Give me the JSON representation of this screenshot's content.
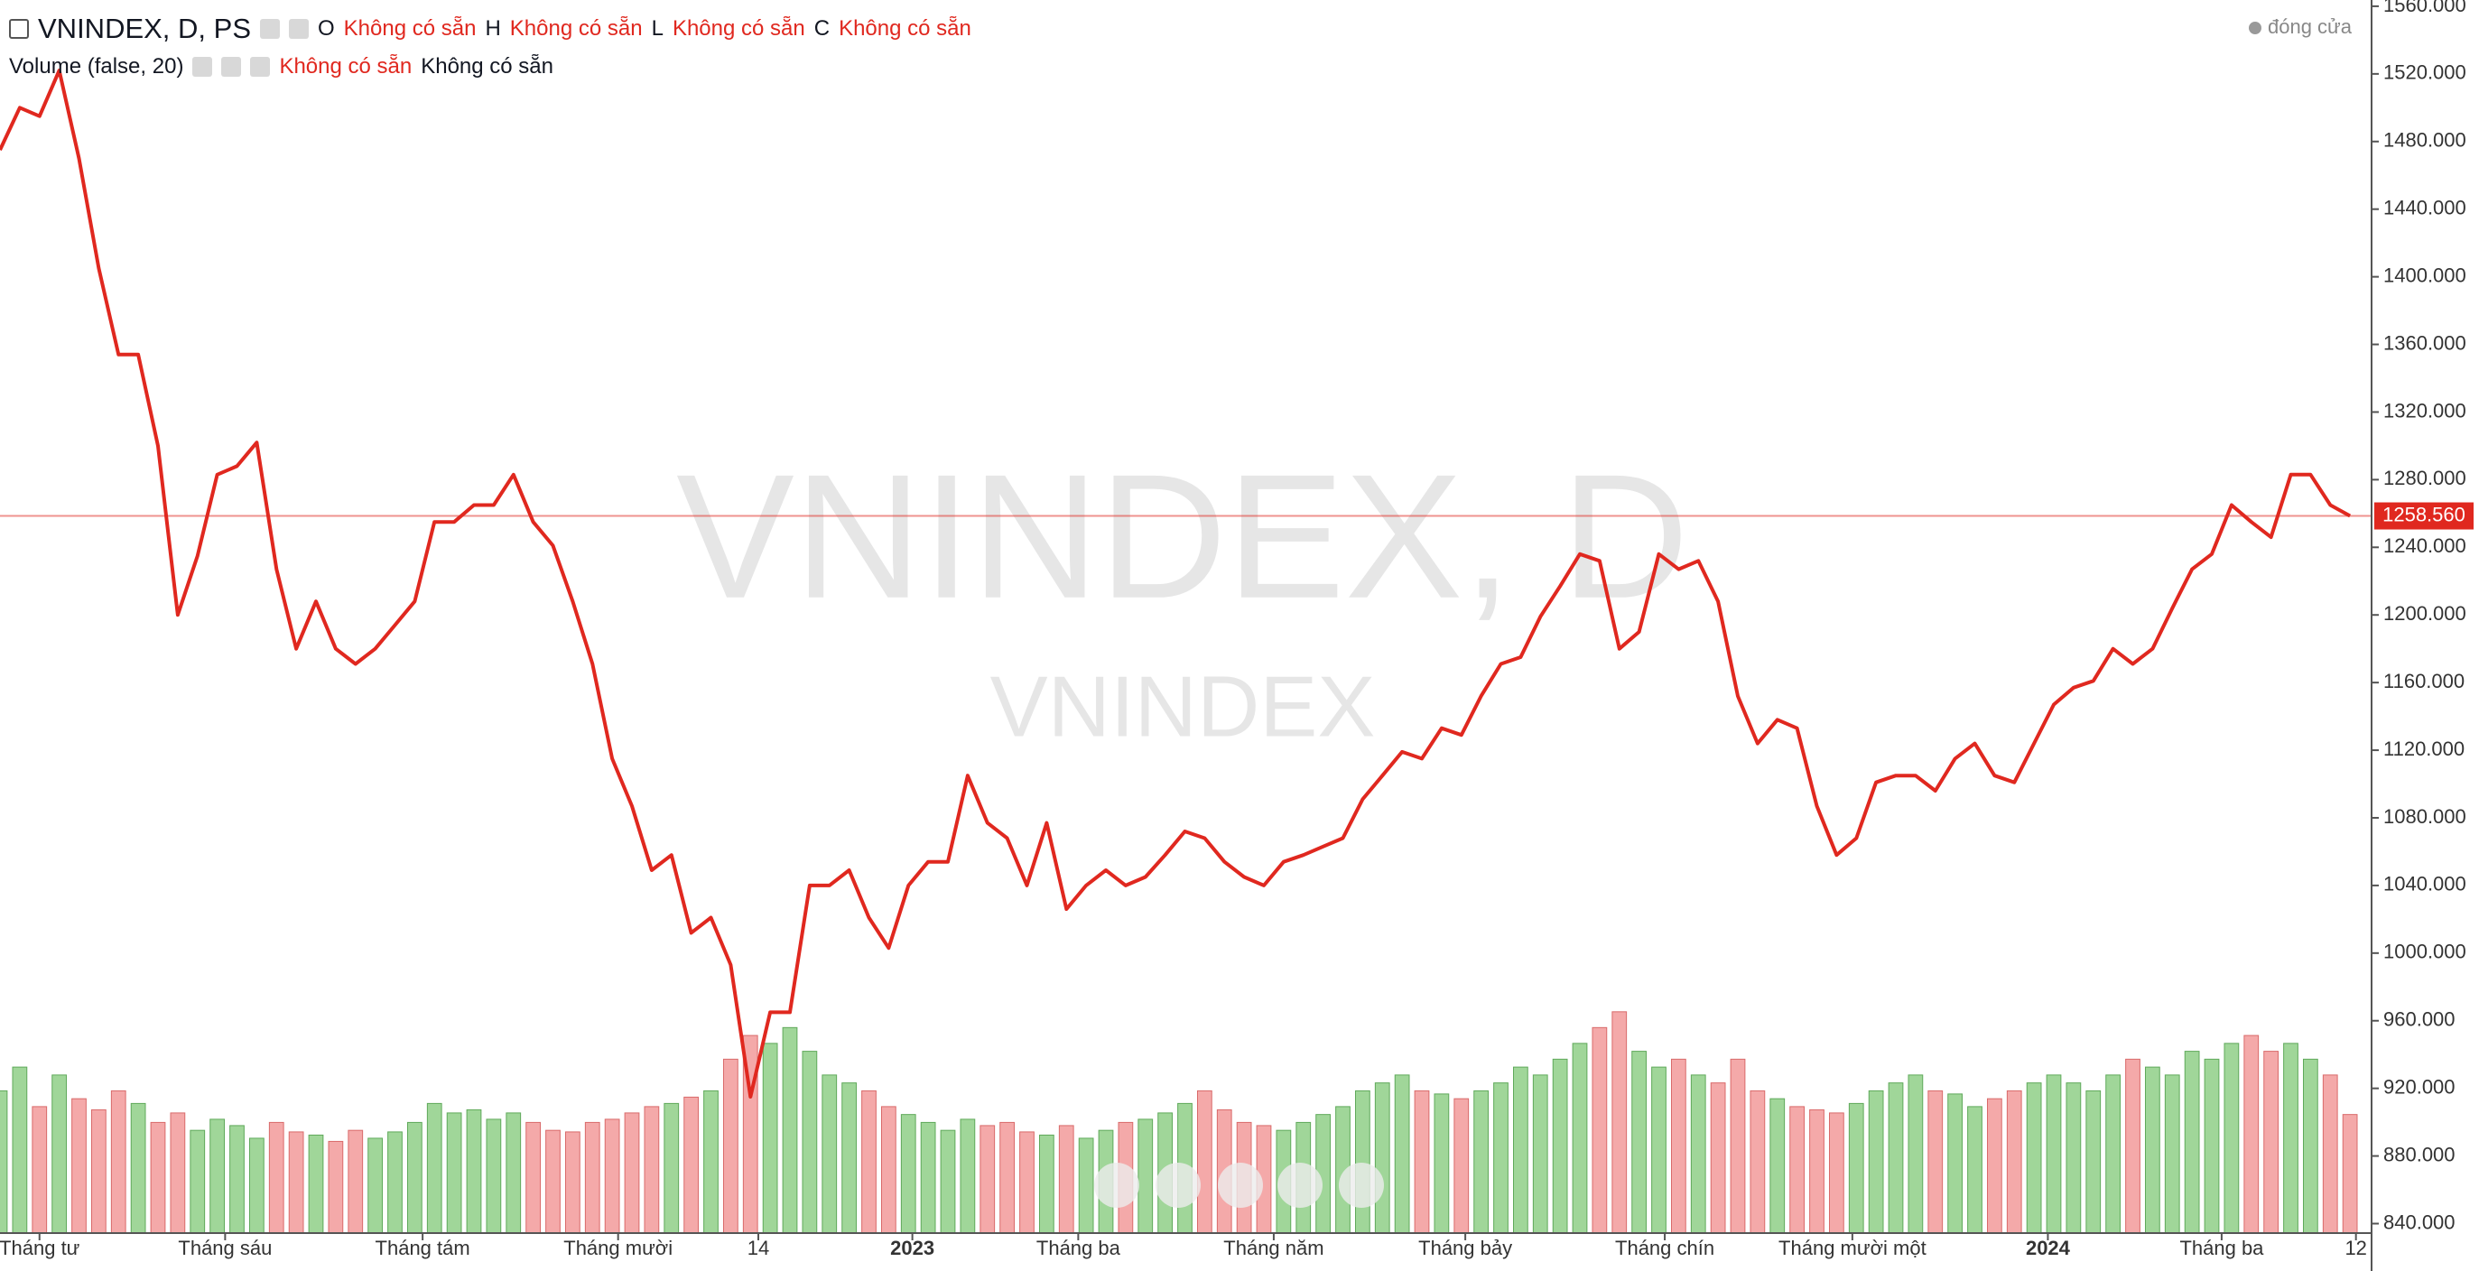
{
  "chart_data": {
    "type": "line",
    "title": "VNINDEX, D, PS",
    "ohlc": [
      {
        "key": "O",
        "value": "Không có sẵn"
      },
      {
        "key": "H",
        "value": "Không có sẵn"
      },
      {
        "key": "L",
        "value": "Không có sẵn"
      },
      {
        "key": "C",
        "value": "Không có sẵn"
      }
    ],
    "volume_legend": {
      "title": "Volume (false, 20)",
      "values": [
        "Không có sẵn",
        "Không có sẵn"
      ]
    },
    "watermark": "VNINDEX, D",
    "close_label": "đóng cửa",
    "series": [
      {
        "name": "VNINDEX",
        "color": "#e0281f",
        "values": [
          1475,
          1500,
          1495,
          1522,
          1470,
          1405,
          1354,
          1354,
          1300,
          1200,
          1235,
          1283,
          1288,
          1302,
          1227,
          1180,
          1208,
          1180,
          1171,
          1180,
          1194,
          1208,
          1255,
          1255,
          1265,
          1265,
          1283,
          1255,
          1241,
          1208,
          1171,
          1115,
          1087,
          1049,
          1058,
          1012,
          1021,
          993,
          915,
          965,
          965,
          1040,
          1040,
          1049,
          1021,
          1003,
          1040,
          1054,
          1054,
          1105,
          1077,
          1068,
          1040,
          1077,
          1026,
          1040,
          1049,
          1040,
          1045,
          1058,
          1072,
          1068,
          1054,
          1045,
          1040,
          1054,
          1058,
          1063,
          1068,
          1091,
          1105,
          1119,
          1115,
          1133,
          1129,
          1152,
          1171,
          1175,
          1199,
          1217,
          1236,
          1232,
          1180,
          1190,
          1236,
          1227,
          1232,
          1208,
          1152,
          1124,
          1138,
          1133,
          1087,
          1058,
          1068,
          1101,
          1105,
          1105,
          1096,
          1115,
          1124,
          1105,
          1101,
          1124,
          1147,
          1157,
          1161,
          1180,
          1171,
          1180,
          1204,
          1227,
          1236,
          1265,
          1255,
          1246,
          1283,
          1283,
          1265,
          1258.56
        ]
      }
    ],
    "volume": {
      "up_color": "#8fcf87",
      "down_color": "#f29a9a",
      "ylim": [
        0,
        7800
      ],
      "values": [
        900,
        1050,
        800,
        1000,
        850,
        780,
        900,
        820,
        700,
        760,
        650,
        720,
        680,
        600,
        700,
        640,
        620,
        580,
        650,
        600,
        640,
        700,
        820,
        760,
        780,
        720,
        760,
        700,
        650,
        640,
        700,
        720,
        760,
        800,
        820,
        860,
        900,
        1100,
        1250,
        1200,
        1300,
        1150,
        1000,
        950,
        900,
        800,
        750,
        700,
        650,
        720,
        680,
        700,
        640,
        620,
        680,
        600,
        650,
        700,
        720,
        760,
        820,
        900,
        780,
        700,
        680,
        650,
        700,
        750,
        800,
        900,
        950,
        1000,
        900,
        880,
        850,
        900,
        950,
        1050,
        1000,
        1100,
        1200,
        1300,
        1400,
        1150,
        1050,
        1100,
        1000,
        950,
        1100,
        900,
        850,
        800,
        780,
        760,
        820,
        900,
        950,
        1000,
        900,
        880,
        800,
        850,
        900,
        950,
        1000,
        950,
        900,
        1000,
        1100,
        1050,
        1000,
        1150,
        1100,
        1200,
        1250,
        1150,
        1200,
        1100,
        1000,
        750
      ]
    },
    "last_price": {
      "value": 1258.56,
      "label": "1258.560"
    },
    "xlim": [
      0,
      120
    ],
    "xticks": [
      {
        "value": 2,
        "label": "Tháng tư"
      },
      {
        "value": 11.4,
        "label": "Tháng sáu"
      },
      {
        "value": 21.4,
        "label": "Tháng tám"
      },
      {
        "value": 31.3,
        "label": "Tháng mười"
      },
      {
        "value": 38.4,
        "label": "14"
      },
      {
        "value": 46.2,
        "label": "2023"
      },
      {
        "value": 54.6,
        "label": "Tháng ba"
      },
      {
        "value": 64.5,
        "label": "Tháng năm"
      },
      {
        "value": 74.2,
        "label": "Tháng bảy"
      },
      {
        "value": 84.3,
        "label": "Tháng chín"
      },
      {
        "value": 93.8,
        "label": "Tháng mười một"
      },
      {
        "value": 103.7,
        "label": "2024"
      },
      {
        "value": 112.5,
        "label": "Tháng ba"
      },
      {
        "value": 119.3,
        "label": "12"
      }
    ],
    "ylim": [
      834.4,
      1563.7
    ],
    "yticks": [
      {
        "value": 840,
        "label": "840.000"
      },
      {
        "value": 880,
        "label": "880.000"
      },
      {
        "value": 920,
        "label": "920.000"
      },
      {
        "value": 960,
        "label": "960.000"
      },
      {
        "value": 1000,
        "label": "1000.000"
      },
      {
        "value": 1040,
        "label": "1040.000"
      },
      {
        "value": 1080,
        "label": "1080.000"
      },
      {
        "value": 1120,
        "label": "1120.000"
      },
      {
        "value": 1160,
        "label": "1160.000"
      },
      {
        "value": 1200,
        "label": "1200.000"
      },
      {
        "value": 1240,
        "label": "1240.000"
      },
      {
        "value": 1280,
        "label": "1280.000"
      },
      {
        "value": 1320,
        "label": "1320.000"
      },
      {
        "value": 1360,
        "label": "1360.000"
      },
      {
        "value": 1400,
        "label": "1400.000"
      },
      {
        "value": 1440,
        "label": "1440.000"
      },
      {
        "value": 1480,
        "label": "1480.000"
      },
      {
        "value": 1520,
        "label": "1520.000"
      },
      {
        "value": 1560,
        "label": "1560.000"
      }
    ]
  }
}
